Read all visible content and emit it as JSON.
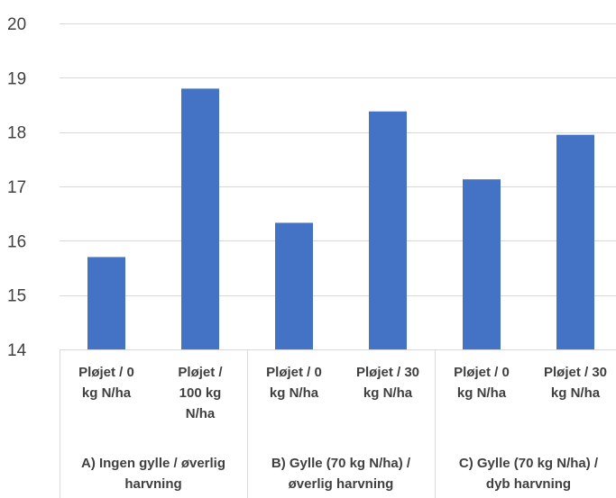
{
  "chart_data": {
    "type": "bar",
    "title": "",
    "xlabel": "",
    "ylabel": "",
    "ylim": [
      14,
      20
    ],
    "yticks": [
      14,
      15,
      16,
      17,
      18,
      19,
      20
    ],
    "grid": true,
    "legend": "none",
    "bar_color": "#4472C4",
    "grid_color": "#D9D9D9",
    "categories": [
      [
        "Pløjet / 0",
        "kg N/ha"
      ],
      [
        "Pløjet /",
        "100 kg",
        "N/ha"
      ],
      [
        "Pløjet / 0",
        "kg N/ha"
      ],
      [
        "Pløjet / 30",
        "kg N/ha"
      ],
      [
        "Pløjet / 0",
        "kg N/ha"
      ],
      [
        "Pløjet / 30",
        "kg N/ha"
      ]
    ],
    "groups": [
      {
        "label": [
          "A) Ingen gylle / øverlig",
          "harvning"
        ],
        "span": [
          0,
          1
        ]
      },
      {
        "label": [
          "B) Gylle (70 kg N/ha) /",
          "øverlig harvning"
        ],
        "span": [
          2,
          3
        ]
      },
      {
        "label": [
          "C) Gylle (70 kg N/ha) /",
          "dyb harvning"
        ],
        "span": [
          4,
          5
        ]
      }
    ],
    "values": [
      15.7,
      18.8,
      16.33,
      18.38,
      17.13,
      17.95
    ]
  }
}
